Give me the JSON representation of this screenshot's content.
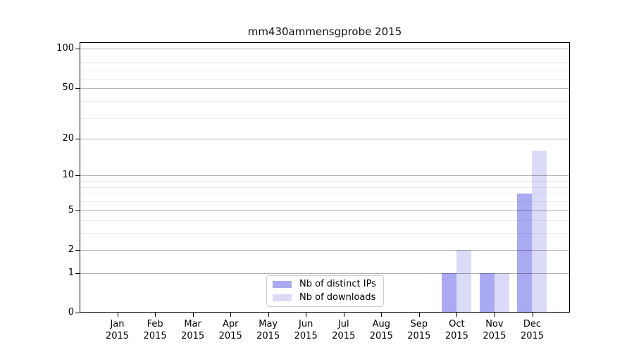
{
  "title": "mm430ammensgprobe 2015",
  "chart_data": {
    "type": "bar",
    "title": "mm430ammensgprobe 2015",
    "categories": [
      "Jan 2015",
      "Feb 2015",
      "Mar 2015",
      "Apr 2015",
      "May 2015",
      "Jun 2015",
      "Jul 2015",
      "Aug 2015",
      "Sep 2015",
      "Oct 2015",
      "Nov 2015",
      "Dec 2015"
    ],
    "series": [
      {
        "name": "Nb of distinct IPs",
        "color": "#aaaaf2",
        "values": [
          0,
          0,
          0,
          0,
          0,
          0,
          0,
          0,
          0,
          1,
          1,
          7
        ]
      },
      {
        "name": "Nb of downloads",
        "color": "#dbdbf7",
        "values": [
          0,
          0,
          0,
          0,
          0,
          0,
          0,
          0,
          0,
          2,
          1,
          16
        ]
      }
    ],
    "xlabel": "",
    "ylabel": "",
    "yscale": "log1p",
    "ylim": [
      0,
      112
    ],
    "y_ticks": [
      0,
      1,
      2,
      5,
      10,
      20,
      50,
      100
    ],
    "y_minor_gridlines": [
      3,
      4,
      6,
      7,
      8,
      9,
      29,
      39,
      59,
      69,
      79,
      89
    ],
    "grid": true,
    "legend": {
      "position": "lower-center",
      "entries": [
        "Nb of distinct IPs",
        "Nb of downloads"
      ]
    }
  }
}
